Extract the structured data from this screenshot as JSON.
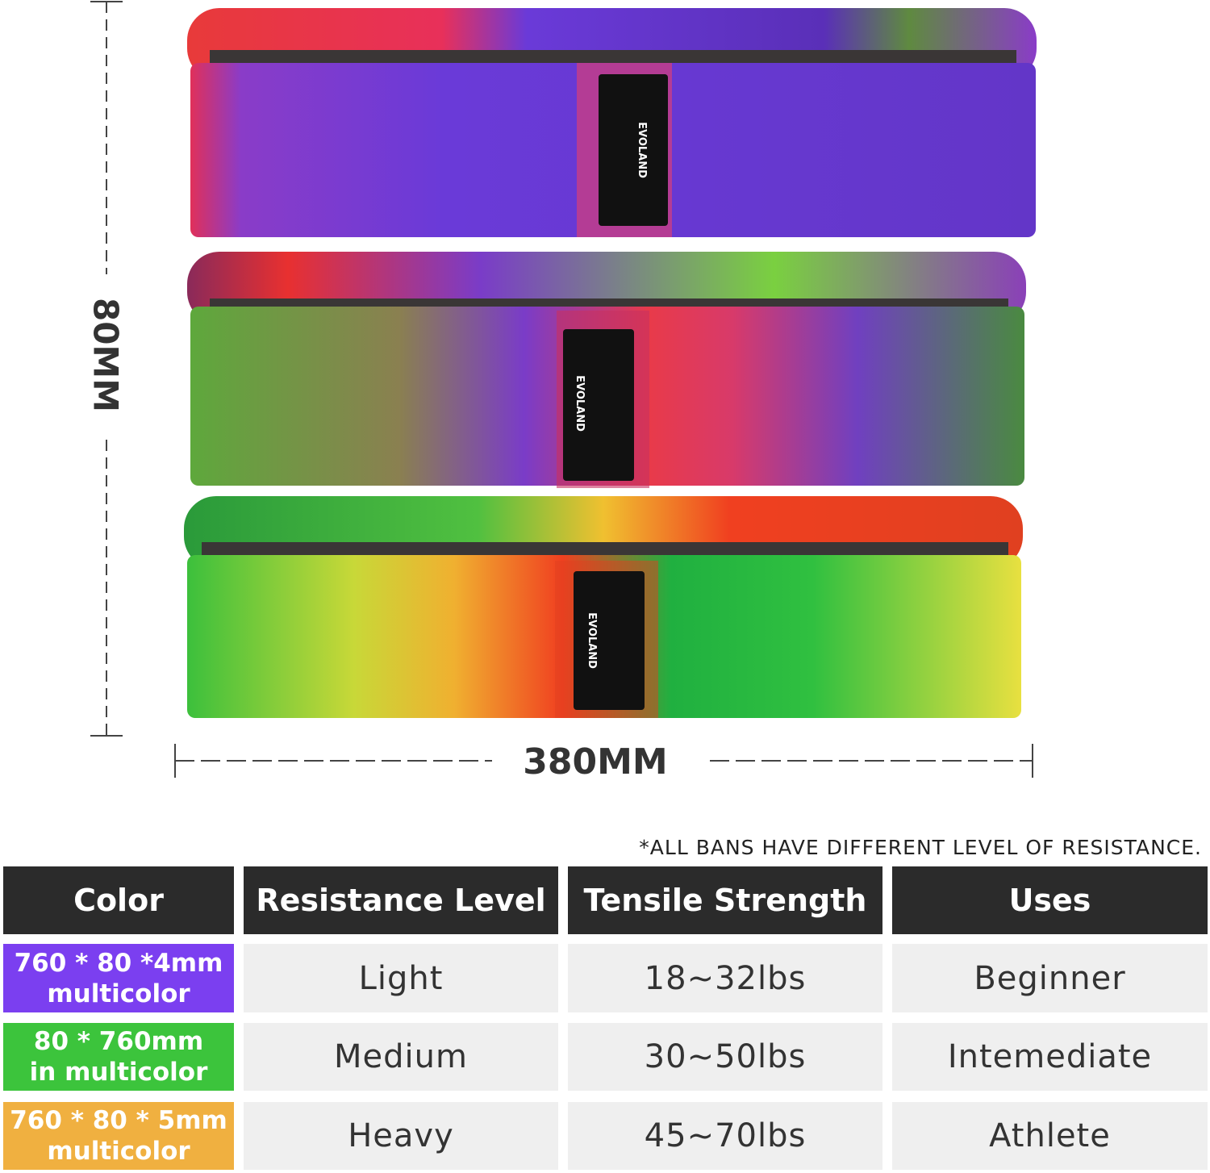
{
  "brand": "EVOLAND",
  "dimensions": {
    "height": "80MM",
    "width": "380MM"
  },
  "note": "*ALL BANS HAVE DIFFERENT LEVEL OF RESISTANCE.",
  "table": {
    "headers": [
      "Color",
      "Resistance Level",
      "Tensile Strength",
      "Uses"
    ],
    "rows": [
      [
        [
          "760 * 80 *4mm",
          "multicolor"
        ],
        "Light",
        "18~32lbs",
        "Beginner"
      ],
      [
        [
          "80 * 760mm",
          "in multicolor"
        ],
        "Medium",
        "30~50lbs",
        "Intemediate"
      ],
      [
        [
          "760 * 80 * 5mm",
          "multicolor"
        ],
        "Heavy",
        "45~70lbs",
        "Athlete"
      ]
    ]
  }
}
